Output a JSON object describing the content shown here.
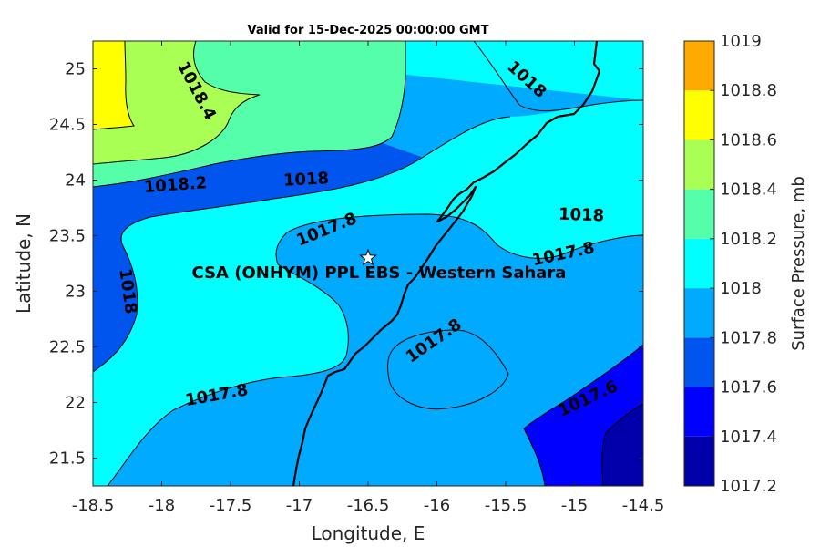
{
  "chart_data": {
    "type": "contour",
    "title": "Valid for 15-Dec-2025 00:00:00 GMT",
    "xlabel": "Longitude, E",
    "ylabel": "Latitude, N",
    "xlim": [
      -18.5,
      -14.5
    ],
    "ylim": [
      21.25,
      25.25
    ],
    "xticks": [
      -18.5,
      -18,
      -17.5,
      -17,
      -16.5,
      -16,
      -15.5,
      -15,
      -14.5
    ],
    "xtick_labels": [
      "-18.5",
      "-18",
      "-17.5",
      "-17",
      "-16.5",
      "-16",
      "-15.5",
      "-15",
      "-14.5"
    ],
    "yticks": [
      21.5,
      22,
      22.5,
      23,
      23.5,
      24,
      24.5,
      25
    ],
    "ytick_labels": [
      "21.5",
      "22",
      "22.5",
      "23",
      "23.5",
      "24",
      "24.5",
      "25"
    ],
    "colorbar": {
      "label": "Surface Pressure, mb",
      "levels": [
        1017.2,
        1017.4,
        1017.6,
        1017.8,
        1018,
        1018.2,
        1018.4,
        1018.6,
        1018.8,
        1019
      ],
      "tick_labels": [
        "1017.2",
        "1017.4",
        "1017.6",
        "1017.8",
        "1018",
        "1018.2",
        "1018.4",
        "1018.6",
        "1018.8",
        "1019"
      ],
      "colors": [
        "#0000aa",
        "#0000ff",
        "#0055ee",
        "#00aaff",
        "#00ffff",
        "#55ffaa",
        "#aaff55",
        "#ffff00",
        "#ffaa00",
        "#ff5500"
      ]
    },
    "contour_labels": [
      {
        "text": "1018.4",
        "lon": -17.75,
        "lat": 24.8,
        "angle": 62
      },
      {
        "text": "1018",
        "lon": -15.35,
        "lat": 24.9,
        "angle": 42
      },
      {
        "text": "1018.2",
        "lon": -17.9,
        "lat": 23.95,
        "angle": -4
      },
      {
        "text": "1018",
        "lon": -16.95,
        "lat": 24.0,
        "angle": -3
      },
      {
        "text": "1018",
        "lon": -14.95,
        "lat": 23.68,
        "angle": 2
      },
      {
        "text": "1017.8",
        "lon": -16.8,
        "lat": 23.55,
        "angle": -22
      },
      {
        "text": "1017.8",
        "lon": -15.08,
        "lat": 23.33,
        "angle": -12
      },
      {
        "text": "1018",
        "lon": -18.25,
        "lat": 23.0,
        "angle": 82
      },
      {
        "text": "1017.8",
        "lon": -16.02,
        "lat": 22.55,
        "angle": -35
      },
      {
        "text": "1017.8",
        "lon": -17.6,
        "lat": 22.06,
        "angle": -10
      },
      {
        "text": "1017.6",
        "lon": -14.9,
        "lat": 22.03,
        "angle": -25
      }
    ],
    "station": {
      "name": "CSA (ONHYM) PPL EBS - Western Sahara",
      "lon": -16.5,
      "lat": 23.3,
      "marker": "white-star"
    }
  }
}
